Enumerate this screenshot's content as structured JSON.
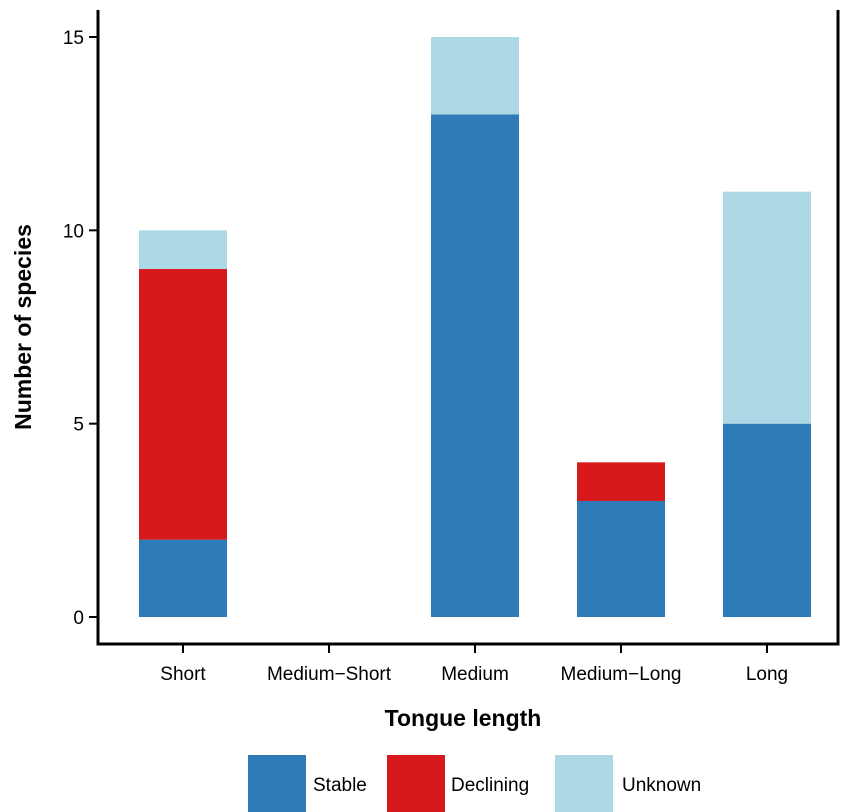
{
  "chart_data": {
    "type": "bar",
    "stacked": true,
    "categories": [
      "Short",
      "Medium−Short",
      "Medium",
      "Medium−Long",
      "Long"
    ],
    "series": [
      {
        "name": "Stable",
        "color": "#2e7bb8",
        "values": [
          2,
          0,
          13,
          3,
          5
        ]
      },
      {
        "name": "Declining",
        "color": "#d7191c",
        "values": [
          7,
          0,
          0,
          1,
          0
        ]
      },
      {
        "name": "Unknown",
        "color": "#add8e6",
        "values": [
          1,
          0,
          2,
          0,
          6
        ]
      }
    ],
    "xlabel": "Tongue length",
    "ylabel": "Number of species",
    "ylim": [
      0,
      15
    ],
    "yticks": [
      "0",
      "5",
      "10",
      "15"
    ],
    "grid": false,
    "legend_position": "bottom"
  }
}
